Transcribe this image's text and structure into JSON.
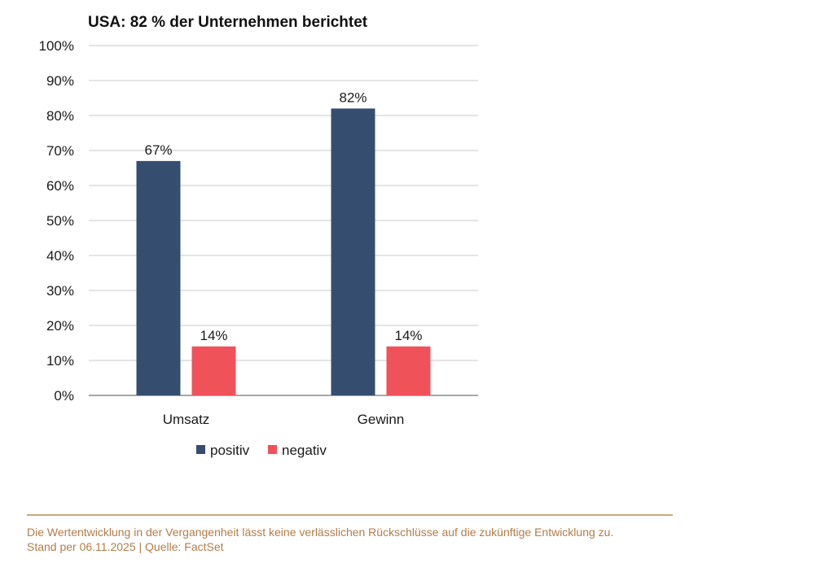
{
  "chart_data": {
    "type": "bar",
    "title": "USA: 82 % der Unternehmen berichtet",
    "categories": [
      "Umsatz",
      "Gewinn"
    ],
    "series": [
      {
        "name": "positiv",
        "color": "#354e70",
        "values": [
          67,
          82
        ],
        "labels": [
          "67%",
          "82%"
        ]
      },
      {
        "name": "negativ",
        "color": "#f0525a",
        "values": [
          14,
          14
        ],
        "labels": [
          "14%",
          "14%"
        ]
      }
    ],
    "ylim": [
      0,
      100
    ],
    "yticks": [
      0,
      10,
      20,
      30,
      40,
      50,
      60,
      70,
      80,
      90,
      100
    ],
    "ytick_labels": [
      "0%",
      "10%",
      "20%",
      "30%",
      "40%",
      "50%",
      "60%",
      "70%",
      "80%",
      "90%",
      "100%"
    ],
    "xlabel": "",
    "ylabel": "",
    "grid": true,
    "legend_position": "bottom"
  },
  "footer": {
    "disclaimer": "Die Wertentwicklung in der Vergangenheit lässt keine verlässlichen Rückschlüsse auf die zukünftige Entwicklung zu.",
    "source": "Stand per 06.11.2025 | Quelle: FactSet"
  }
}
